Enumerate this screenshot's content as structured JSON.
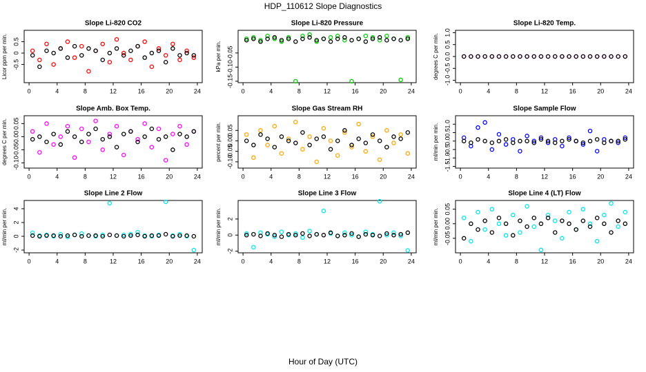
{
  "page": {
    "title": "HDP_110612  Slope Diagnostics",
    "xlabel": "Hour of Day (UTC)"
  },
  "chart_data": [
    {
      "type": "scatter",
      "title": "Slope Li-820 CO2",
      "ylabel": "Licor ppm per min.",
      "x": [
        0.5,
        1.5,
        2.5,
        3.5,
        4.5,
        5.5,
        6.5,
        7.5,
        8.5,
        9.5,
        10.5,
        11.5,
        12.5,
        13.5,
        14.5,
        15.5,
        16.5,
        17.5,
        18.5,
        19.5,
        20.5,
        21.5,
        22.5,
        23.5
      ],
      "xlim": [
        -0.7,
        24.7
      ],
      "xticks": [
        0,
        4,
        8,
        12,
        16,
        20,
        24
      ],
      "ylim": [
        -1.3,
        1.0
      ],
      "yticks": [
        0.5,
        0,
        -0.5
      ],
      "series": [
        {
          "color": "#ff0000",
          "values": [
            0.1,
            -0.3,
            0.4,
            -0.5,
            0.2,
            0.5,
            -0.2,
            0.3,
            -0.8,
            0.1,
            0.4,
            -0.4,
            0.6,
            0.0,
            -0.3,
            0.3,
            0.5,
            -0.6,
            0.2,
            -0.1,
            0.4,
            -0.3,
            0.1,
            -0.2
          ]
        },
        {
          "color": "#000000",
          "values": [
            -0.1,
            -0.6,
            0.1,
            0.0,
            0.2,
            -0.2,
            0.3,
            -0.1,
            0.2,
            0.1,
            -0.3,
            0.0,
            0.2,
            -0.1,
            0.1,
            0.3,
            -0.2,
            0.0,
            0.1,
            -0.4,
            0.2,
            -0.1,
            0.0,
            -0.1
          ]
        }
      ]
    },
    {
      "type": "scatter",
      "title": "Slope Li-820 Pressure",
      "ylabel": "kPa per min.",
      "x": [
        0.5,
        1.5,
        2.5,
        3.5,
        4.5,
        5.5,
        6.5,
        7.5,
        8.5,
        9.5,
        10.5,
        11.5,
        12.5,
        13.5,
        14.5,
        15.5,
        16.5,
        17.5,
        18.5,
        19.5,
        20.5,
        21.5,
        22.5,
        23.5
      ],
      "xlim": [
        -0.7,
        24.7
      ],
      "xticks": [
        0,
        4,
        8,
        12,
        16,
        20,
        24
      ],
      "ylim": [
        -0.155,
        0.03
      ],
      "yticks": [
        -0.05,
        {
          "value": -0.1,
          "label": "-0.10"
        },
        -0.15
      ],
      "series": [
        {
          "color": "#00cc00",
          "values": [
            0.0,
            0.005,
            -0.005,
            0.01,
            0.0,
            -0.01,
            0.005,
            -0.15,
            0.01,
            0.015,
            -0.01,
            0.0,
            0.005,
            0.01,
            -0.005,
            -0.15,
            0.0,
            0.01,
            0.005,
            -0.005,
            0.01,
            0.0,
            -0.145,
            0.005
          ]
        },
        {
          "color": "#000000",
          "values": [
            -0.005,
            0.0,
            -0.01,
            0.0,
            0.005,
            -0.005,
            0.0,
            -0.01,
            0.0,
            0.005,
            -0.005,
            0.0,
            -0.01,
            0.0,
            0.005,
            -0.005,
            0.0,
            -0.01,
            0.0,
            0.005,
            -0.005,
            0.0,
            -0.005,
            0.0
          ]
        }
      ]
    },
    {
      "type": "scatter",
      "title": "Slope Li-820 Temp.",
      "ylabel": "degrees C per min.",
      "x": [
        0.5,
        1.5,
        2.5,
        3.5,
        4.5,
        5.5,
        6.5,
        7.5,
        8.5,
        9.5,
        10.5,
        11.5,
        12.5,
        13.5,
        14.5,
        15.5,
        16.5,
        17.5,
        18.5,
        19.5,
        20.5,
        21.5,
        22.5,
        23.5
      ],
      "xlim": [
        -0.7,
        24.7
      ],
      "xticks": [
        0,
        4,
        8,
        12,
        16,
        20,
        24
      ],
      "ylim": [
        -1.1,
        1.1
      ],
      "yticks": [
        {
          "value": 1,
          "label": "1.0"
        },
        0.5,
        {
          "value": 0,
          "label": "0.0"
        },
        -0.5,
        {
          "value": -1,
          "label": "-1.0"
        }
      ],
      "series": [
        {
          "color": "#ff00ff",
          "values": [
            0,
            0,
            0,
            0,
            0,
            0,
            0,
            0,
            0,
            0,
            0,
            0,
            0,
            0,
            0,
            0,
            0,
            0,
            0,
            0,
            0,
            0,
            0,
            0
          ]
        },
        {
          "color": "#000000",
          "values": [
            0,
            0,
            0,
            0,
            0,
            0,
            0,
            0,
            0,
            0,
            0,
            0,
            0,
            0,
            0,
            0,
            0,
            0,
            0,
            0,
            0,
            0,
            0,
            0
          ]
        }
      ]
    },
    {
      "type": "scatter",
      "title": "Slope Amb. Box Temp.",
      "ylabel": "degrees C per min.",
      "x": [
        0.5,
        1.5,
        2.5,
        3.5,
        4.5,
        5.5,
        6.5,
        7.5,
        8.5,
        9.5,
        10.5,
        11.5,
        12.5,
        13.5,
        14.5,
        15.5,
        16.5,
        17.5,
        18.5,
        19.5,
        20.5,
        21.5,
        22.5,
        23.5
      ],
      "xlim": [
        -0.7,
        24.7
      ],
      "xticks": [
        0,
        4,
        8,
        12,
        16,
        20,
        24
      ],
      "ylim": [
        -0.12,
        0.08
      ],
      "yticks": [
        0.05,
        {
          "value": 0,
          "label": "0.00"
        },
        -0.05,
        {
          "value": -0.1,
          "label": "-0.10"
        }
      ],
      "series": [
        {
          "color": "#ff00ff",
          "values": [
            0.02,
            -0.06,
            0.05,
            -0.03,
            0.0,
            0.04,
            -0.08,
            0.03,
            -0.02,
            0.06,
            -0.05,
            0.01,
            0.04,
            -0.07,
            0.02,
            -0.01,
            0.05,
            -0.04,
            0.03,
            -0.09,
            0.01,
            0.04,
            -0.03,
            0.02
          ]
        },
        {
          "color": "#000000",
          "values": [
            -0.01,
            0.0,
            -0.02,
            0.01,
            -0.03,
            0.02,
            0.0,
            -0.02,
            0.01,
            0.03,
            -0.01,
            0.0,
            -0.04,
            0.01,
            0.02,
            -0.02,
            0.0,
            0.03,
            -0.01,
            0.0,
            -0.05,
            0.01,
            0.0,
            0.02
          ]
        }
      ]
    },
    {
      "type": "scatter",
      "title": "Slope Gas Stream RH",
      "ylabel": "percent per min.",
      "x": [
        0.5,
        1.5,
        2.5,
        3.5,
        4.5,
        5.5,
        6.5,
        7.5,
        8.5,
        9.5,
        10.5,
        11.5,
        12.5,
        13.5,
        14.5,
        15.5,
        16.5,
        17.5,
        18.5,
        19.5,
        20.5,
        21.5,
        22.5,
        23.5
      ],
      "xlim": [
        -0.7,
        24.7
      ],
      "xticks": [
        0,
        4,
        8,
        12,
        16,
        20,
        24
      ],
      "ylim": [
        -0.13,
        0.12
      ],
      "yticks": [
        0.05,
        {
          "value": 0,
          "label": "0.00"
        },
        -0.05,
        {
          "value": -0.1,
          "label": "-0.10"
        }
      ],
      "series": [
        {
          "color": "#ffa500",
          "values": [
            0.03,
            -0.08,
            0.05,
            -0.02,
            0.07,
            -0.06,
            0.01,
            0.09,
            -0.04,
            0.02,
            -0.1,
            0.06,
            0.0,
            -0.07,
            0.04,
            -0.03,
            0.08,
            -0.05,
            0.02,
            -0.09,
            0.05,
            -0.01,
            0.03,
            -0.06
          ]
        },
        {
          "color": "#000000",
          "values": [
            0.0,
            -0.02,
            0.03,
            0.01,
            -0.03,
            0.02,
            0.0,
            -0.01,
            0.04,
            -0.02,
            0.01,
            0.02,
            -0.04,
            0.0,
            0.05,
            -0.02,
            0.01,
            -0.01,
            0.03,
            0.0,
            -0.03,
            0.02,
            0.01,
            0.04
          ]
        }
      ]
    },
    {
      "type": "scatter",
      "title": "Slope Sample Flow",
      "ylabel": "ml/min per min.",
      "x": [
        0.5,
        1.5,
        2.5,
        3.5,
        4.5,
        5.5,
        6.5,
        7.5,
        8.5,
        9.5,
        10.5,
        11.5,
        12.5,
        13.5,
        14.5,
        15.5,
        16.5,
        17.5,
        18.5,
        19.5,
        20.5,
        21.5,
        22.5,
        23.5
      ],
      "xlim": [
        -0.7,
        24.7
      ],
      "xticks": [
        0,
        4,
        8,
        12,
        16,
        20,
        24
      ],
      "ylim": [
        -1.6,
        1.5
      ],
      "yticks": [
        {
          "value": 1,
          "label": "1.0"
        },
        0.5,
        {
          "value": 0,
          "label": "0.0"
        },
        -0.5,
        {
          "value": -1,
          "label": "-1.0"
        },
        -1.5
      ],
      "series": [
        {
          "color": "#0000ff",
          "values": [
            0.2,
            -0.3,
            0.8,
            1.1,
            -0.5,
            0.4,
            -0.2,
            0.1,
            -0.6,
            0.3,
            0.0,
            0.2,
            -0.1,
            0.1,
            -0.3,
            0.2,
            0.0,
            -0.2,
            0.6,
            -0.6,
            0.1,
            0.0,
            -0.1,
            0.2
          ]
        },
        {
          "color": "#000000",
          "values": [
            0.0,
            -0.1,
            0.1,
            0.0,
            -0.1,
            0.0,
            0.1,
            -0.1,
            0.0,
            0.0,
            -0.1,
            0.1,
            0.0,
            -0.1,
            0.0,
            0.1,
            0.0,
            -0.1,
            0.0,
            0.1,
            -0.1,
            0.0,
            0.0,
            0.1
          ]
        }
      ]
    },
    {
      "type": "scatter",
      "title": "Slope Line 2 Flow",
      "ylabel": "ml/min per min.",
      "x": [
        0.5,
        1.5,
        2.5,
        3.5,
        4.5,
        5.5,
        6.5,
        7.5,
        8.5,
        9.5,
        10.5,
        11.5,
        12.5,
        13.5,
        14.5,
        15.5,
        16.5,
        17.5,
        18.5,
        19.5,
        20.5,
        21.5,
        22.5,
        23.5
      ],
      "xlim": [
        -0.7,
        24.7
      ],
      "xticks": [
        0,
        4,
        8,
        12,
        16,
        20,
        24
      ],
      "ylim": [
        -2.4,
        5.2
      ],
      "yticks": [
        4,
        2,
        0,
        -2
      ],
      "series": [
        {
          "color": "#00e5ee",
          "values": [
            0.5,
            0.1,
            0.2,
            0.0,
            0.3,
            -0.1,
            0.2,
            0.4,
            0.1,
            0.0,
            0.2,
            4.8,
            0.1,
            0.2,
            0.3,
            0.6,
            0.1,
            0.0,
            0.2,
            5.0,
            0.1,
            0.3,
            0.0,
            -2.0
          ]
        },
        {
          "color": "#000000",
          "values": [
            0.1,
            0.0,
            0.1,
            0.1,
            0.0,
            0.1,
            0.2,
            0.0,
            0.1,
            0.1,
            0.0,
            0.2,
            0.1,
            0.0,
            0.1,
            0.2,
            0.0,
            0.1,
            0.1,
            0.3,
            0.0,
            0.1,
            0.1,
            0.0
          ]
        }
      ]
    },
    {
      "type": "scatter",
      "title": "Slope Line 3 Flow",
      "ylabel": "ml/min per min.",
      "x": [
        0.5,
        1.5,
        2.5,
        3.5,
        4.5,
        5.5,
        6.5,
        7.5,
        8.5,
        9.5,
        10.5,
        11.5,
        12.5,
        13.5,
        14.5,
        15.5,
        16.5,
        17.5,
        18.5,
        19.5,
        20.5,
        21.5,
        22.5,
        23.5
      ],
      "xlim": [
        -0.7,
        24.7
      ],
      "xticks": [
        0,
        4,
        8,
        12,
        16,
        20,
        24
      ],
      "ylim": [
        -2.2,
        4.3
      ],
      "yticks": [
        2,
        0,
        -2
      ],
      "series": [
        {
          "color": "#00e5ee",
          "values": [
            0.2,
            -1.5,
            0.3,
            0.1,
            -0.2,
            0.4,
            0.0,
            0.2,
            -0.3,
            0.5,
            0.1,
            3.0,
            0.2,
            -0.1,
            0.3,
            0.0,
            -0.2,
            0.4,
            0.1,
            4.2,
            0.0,
            0.3,
            -0.1,
            -1.9
          ]
        },
        {
          "color": "#000000",
          "values": [
            0.0,
            0.1,
            -0.1,
            0.2,
            0.0,
            -0.2,
            0.1,
            0.0,
            0.2,
            -0.1,
            0.1,
            0.0,
            0.3,
            -0.1,
            0.0,
            0.2,
            -0.2,
            0.1,
            0.0,
            -0.1,
            0.2,
            0.0,
            0.1,
            0.3
          ]
        }
      ]
    },
    {
      "type": "scatter",
      "title": "Slope Line 4 (LT) Flow",
      "ylabel": "ml/min per min.",
      "x": [
        0.5,
        1.5,
        2.5,
        3.5,
        4.5,
        5.5,
        6.5,
        7.5,
        8.5,
        9.5,
        10.5,
        11.5,
        12.5,
        13.5,
        14.5,
        15.5,
        16.5,
        17.5,
        18.5,
        19.5,
        20.5,
        21.5,
        22.5,
        23.5
      ],
      "xlim": [
        -0.7,
        24.7
      ],
      "xticks": [
        0,
        4,
        8,
        12,
        16,
        20,
        24
      ],
      "ylim": [
        -0.1,
        0.08
      ],
      "yticks": [
        0.05,
        {
          "value": 0,
          "label": "0.00"
        },
        -0.05
      ],
      "series": [
        {
          "color": "#00e5ee",
          "values": [
            0.02,
            -0.06,
            0.04,
            -0.02,
            0.05,
            0.0,
            -0.04,
            0.03,
            -0.03,
            0.06,
            -0.01,
            -0.09,
            0.03,
            0.01,
            -0.05,
            0.04,
            -0.02,
            0.05,
            0.0,
            -0.06,
            0.03,
            0.07,
            -0.01,
            0.04
          ]
        },
        {
          "color": "#000000",
          "values": [
            -0.05,
            0.0,
            -0.02,
            0.01,
            -0.03,
            0.02,
            0.0,
            -0.04,
            0.01,
            -0.01,
            0.02,
            0.0,
            0.02,
            -0.03,
            0.01,
            0.0,
            -0.02,
            0.01,
            -0.01,
            0.02,
            0.0,
            -0.03,
            0.01,
            0.0
          ]
        }
      ]
    }
  ]
}
